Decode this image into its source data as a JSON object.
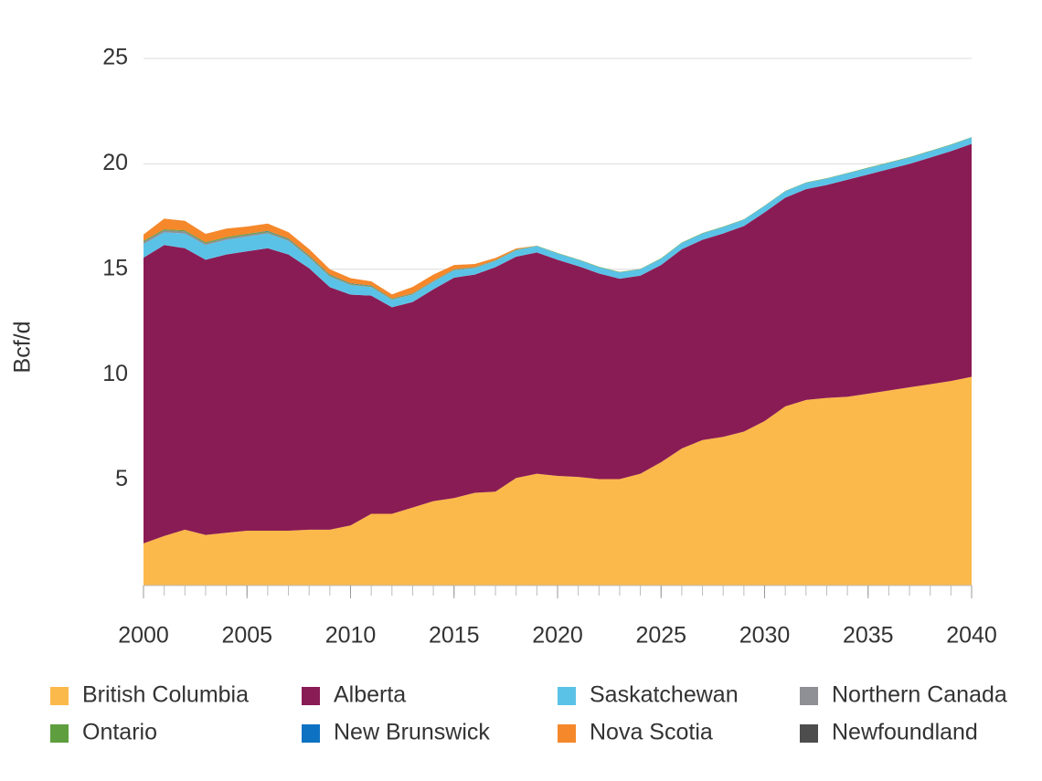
{
  "chart_data": {
    "type": "stacked-area",
    "y_label": "Bcf/d",
    "x": [
      2000,
      2001,
      2002,
      2003,
      2004,
      2005,
      2006,
      2007,
      2008,
      2009,
      2010,
      2011,
      2012,
      2013,
      2014,
      2015,
      2016,
      2017,
      2018,
      2019,
      2020,
      2021,
      2022,
      2023,
      2024,
      2025,
      2026,
      2027,
      2028,
      2029,
      2030,
      2031,
      2032,
      2033,
      2034,
      2035,
      2036,
      2037,
      2038,
      2039,
      2040
    ],
    "xlim": [
      2000,
      2040
    ],
    "xticks": [
      2000,
      2005,
      2010,
      2015,
      2020,
      2025,
      2030,
      2035,
      2040
    ],
    "ylim": [
      0,
      25
    ],
    "yticks": [
      5,
      10,
      15,
      20,
      25
    ],
    "grid": true,
    "series": [
      {
        "name": "British Columbia",
        "color": "#fbb94b",
        "values": [
          2.0,
          2.35,
          2.65,
          2.4,
          2.5,
          2.6,
          2.6,
          2.6,
          2.65,
          2.65,
          2.85,
          3.4,
          3.4,
          3.7,
          4.0,
          4.15,
          4.4,
          4.45,
          5.1,
          5.3,
          5.2,
          5.15,
          5.05,
          5.05,
          5.3,
          5.85,
          6.5,
          6.9,
          7.05,
          7.3,
          7.8,
          8.5,
          8.8,
          8.9,
          8.95,
          9.1,
          9.25,
          9.4,
          9.55,
          9.7,
          9.9
        ]
      },
      {
        "name": "Alberta",
        "color": "#8a1c55",
        "values": [
          13.55,
          13.8,
          13.35,
          13.05,
          13.2,
          13.25,
          13.4,
          13.1,
          12.4,
          11.5,
          10.95,
          10.35,
          9.8,
          9.75,
          10.05,
          10.45,
          10.35,
          10.65,
          10.5,
          10.5,
          10.25,
          10.0,
          9.75,
          9.5,
          9.4,
          9.35,
          9.45,
          9.5,
          9.65,
          9.75,
          9.9,
          9.9,
          10.0,
          10.1,
          10.3,
          10.4,
          10.5,
          10.6,
          10.75,
          10.9,
          11.05
        ]
      },
      {
        "name": "Saskatchewan",
        "color": "#5bc2e7",
        "values": [
          0.65,
          0.6,
          0.7,
          0.7,
          0.7,
          0.7,
          0.7,
          0.65,
          0.5,
          0.5,
          0.45,
          0.4,
          0.35,
          0.35,
          0.35,
          0.35,
          0.3,
          0.3,
          0.3,
          0.3,
          0.3,
          0.3,
          0.3,
          0.3,
          0.3,
          0.3,
          0.3,
          0.3,
          0.3,
          0.3,
          0.3,
          0.3,
          0.3,
          0.3,
          0.3,
          0.3,
          0.3,
          0.3,
          0.3,
          0.3,
          0.3
        ]
      },
      {
        "name": "Northern Canada",
        "color": "#8f8f96",
        "values": [
          0.1,
          0.1,
          0.1,
          0.08,
          0.08,
          0.08,
          0.06,
          0.05,
          0.05,
          0.04,
          0.03,
          0.03,
          0.02,
          0.02,
          0.02,
          0.02,
          0.02,
          0.02,
          0.02,
          0,
          0,
          0,
          0,
          0,
          0,
          0,
          0,
          0,
          0,
          0,
          0,
          0,
          0,
          0,
          0,
          0,
          0,
          0,
          0,
          0,
          0
        ]
      },
      {
        "name": "Ontario",
        "color": "#5e9e3e",
        "values": [
          0.05,
          0.05,
          0.05,
          0.05,
          0.05,
          0.05,
          0.04,
          0.04,
          0.04,
          0.04,
          0.03,
          0.03,
          0.03,
          0.03,
          0.02,
          0.02,
          0.02,
          0.02,
          0.02,
          0.02,
          0.02,
          0.02,
          0.02,
          0.02,
          0.02,
          0.02,
          0.02,
          0.02,
          0.02,
          0.02,
          0.02,
          0.02,
          0.02,
          0.02,
          0.02,
          0.02,
          0.02,
          0.02,
          0.02,
          0.02,
          0.02
        ]
      },
      {
        "name": "New Brunswick",
        "color": "#0e72c2",
        "values": [
          0,
          0,
          0,
          0,
          0,
          0,
          0.02,
          0.02,
          0.02,
          0.02,
          0.02,
          0.02,
          0.01,
          0.01,
          0.01,
          0.01,
          0.01,
          0,
          0,
          0,
          0,
          0,
          0,
          0,
          0,
          0,
          0,
          0,
          0,
          0,
          0,
          0,
          0,
          0,
          0,
          0,
          0,
          0,
          0,
          0,
          0
        ]
      },
      {
        "name": "Nova Scotia",
        "color": "#f5882b",
        "values": [
          0.3,
          0.5,
          0.45,
          0.4,
          0.4,
          0.35,
          0.35,
          0.3,
          0.3,
          0.25,
          0.25,
          0.2,
          0.2,
          0.3,
          0.3,
          0.2,
          0.15,
          0.1,
          0.05,
          0,
          0,
          0,
          0,
          0,
          0,
          0,
          0,
          0,
          0,
          0,
          0,
          0,
          0,
          0,
          0,
          0,
          0,
          0,
          0,
          0,
          0
        ]
      },
      {
        "name": "Newfoundland",
        "color": "#4d4d4d",
        "values": [
          0,
          0,
          0,
          0,
          0,
          0,
          0,
          0,
          0,
          0,
          0,
          0,
          0,
          0,
          0,
          0,
          0,
          0,
          0,
          0,
          0,
          0,
          0,
          0,
          0,
          0,
          0,
          0,
          0,
          0,
          0,
          0,
          0,
          0,
          0,
          0,
          0,
          0,
          0,
          0,
          0
        ]
      }
    ]
  }
}
